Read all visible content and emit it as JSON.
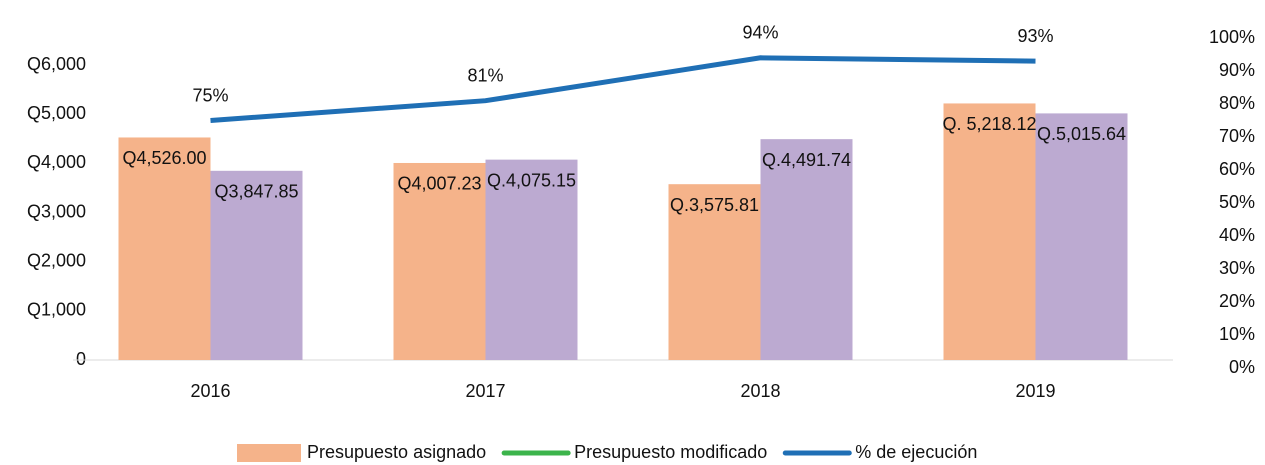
{
  "chart_data": {
    "type": "bar_line",
    "categories": [
      "2016",
      "2017",
      "2018",
      "2019"
    ],
    "series": [
      {
        "name": "Presupuesto asignado",
        "color": "#f5b38a",
        "values": [
          4526.0,
          4007.23,
          3575.81,
          5218.12
        ],
        "value_labels": [
          "Q4,526.00",
          "Q4,007.23",
          "Q.3,575.81",
          "Q. 5,218.12"
        ]
      },
      {
        "name": "Presupuesto modificado",
        "color": "#bcaad1",
        "legend_color": "#3cb44b",
        "values": [
          3847.85,
          4075.15,
          4491.74,
          5015.64
        ],
        "value_labels": [
          "Q3,847.85",
          "Q.4,075.15",
          "Q.4,491.74",
          "Q.5,015.64"
        ]
      },
      {
        "name": "% de ejecución",
        "type": "line",
        "axis": "y2",
        "color": "#1f6fb5",
        "values": [
          75,
          81,
          94,
          93
        ],
        "value_labels": [
          "75%",
          "81%",
          "94%",
          "93%"
        ]
      }
    ],
    "ylim": [
      0,
      6000
    ],
    "yticks": [
      0,
      {
        "value": 1000,
        "label": "Q1,000"
      },
      {
        "value": 2000,
        "label": "Q2,000"
      },
      {
        "value": 3000,
        "label": "Q3,000"
      },
      {
        "value": 4000,
        "label": "Q4,000"
      },
      {
        "value": 5000,
        "label": "Q5,000"
      },
      {
        "value": 6000,
        "label": "Q6,000"
      }
    ],
    "y2lim": [
      0,
      100
    ],
    "y2ticks": [
      {
        "value": 0,
        "label": "0%"
      },
      {
        "value": 10,
        "label": "10%"
      },
      {
        "value": 20,
        "label": "20%"
      },
      {
        "value": 30,
        "label": "30%"
      },
      {
        "value": 40,
        "label": "40%"
      },
      {
        "value": 50,
        "label": "50%"
      },
      {
        "value": 60,
        "label": "60%"
      },
      {
        "value": 70,
        "label": "70%"
      },
      {
        "value": 80,
        "label": "80%"
      },
      {
        "value": 90,
        "label": "90%"
      },
      {
        "value": 100,
        "label": "100%"
      }
    ],
    "grid": false,
    "legend": "bottom"
  }
}
